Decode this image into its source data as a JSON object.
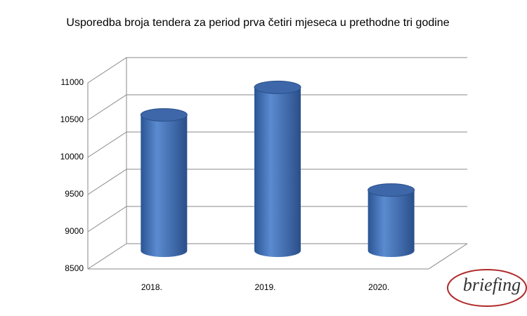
{
  "chart_data": {
    "type": "bar3d",
    "title": "Usporedba broja tendera za period prva četiri mjeseca u prethodne tri godine",
    "categories": [
      "2018.",
      "2019.",
      "2020."
    ],
    "values": [
      10400,
      10770,
      9390
    ],
    "color": "#3f6fb5",
    "ylim": [
      8500,
      11000
    ],
    "yticks": [
      8500,
      9000,
      9500,
      10000,
      10500,
      11000
    ],
    "grid": true
  },
  "watermark": "briefing"
}
